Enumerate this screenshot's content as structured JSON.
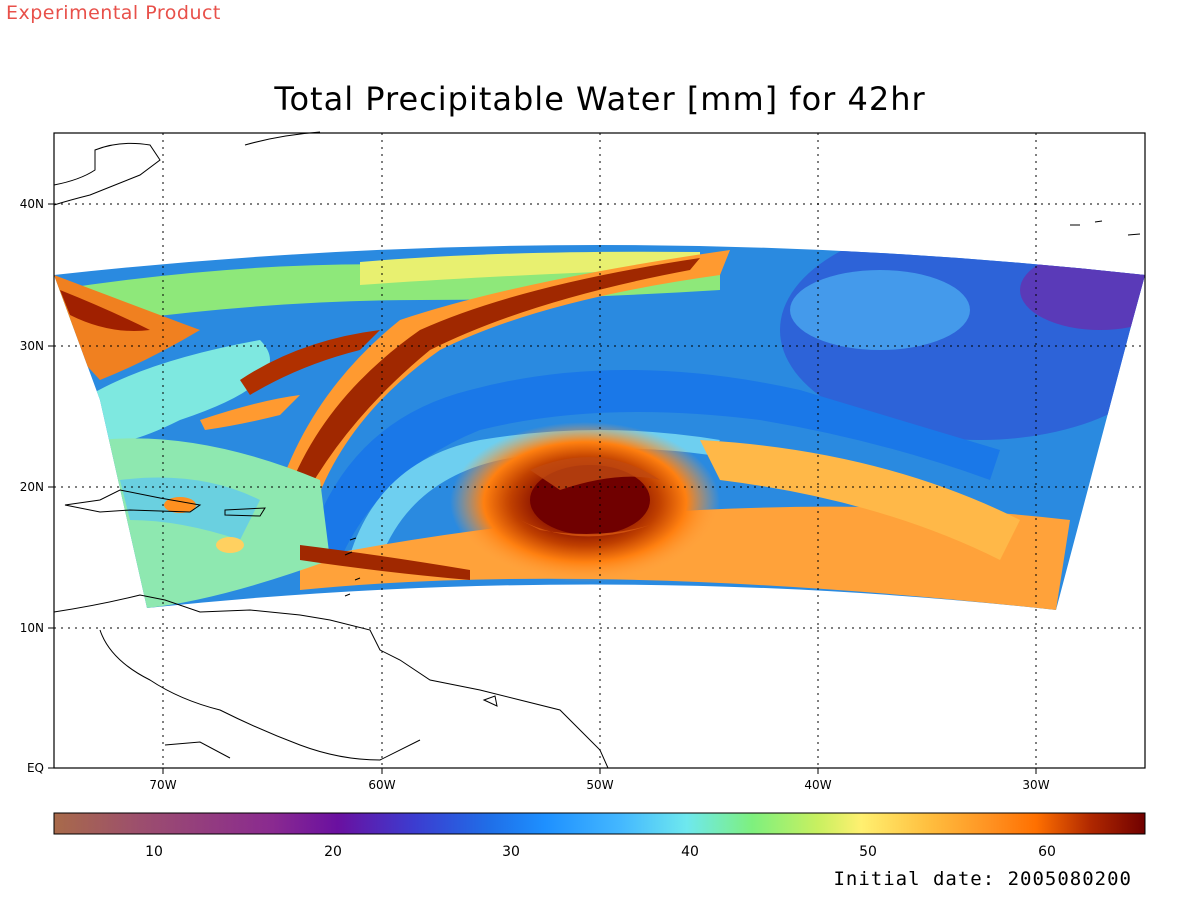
{
  "header": {
    "product_label": "Experimental Product"
  },
  "title": "Total Precipitable Water [mm] for 42hr",
  "map": {
    "lat_labels": [
      "40N",
      "30N",
      "20N",
      "10N",
      "EQ"
    ],
    "lon_labels": [
      "70W",
      "60W",
      "50W",
      "40W",
      "30W"
    ],
    "field_variable": "Total Precipitable Water",
    "units": "mm",
    "forecast_hour": "42hr",
    "features": [
      "storm-vortex",
      "coastlines",
      "dotted-graticule"
    ]
  },
  "colorbar": {
    "range": [
      5,
      65
    ],
    "tick_labels": [
      "10",
      "20",
      "30",
      "40",
      "50",
      "60"
    ],
    "colors": [
      "#a86a4a",
      "#9c4e6e",
      "#8a2a90",
      "#6a10a0",
      "#3c3cd0",
      "#1f6fe8",
      "#1e90ff",
      "#44b8ff",
      "#6ee8ee",
      "#7ef07e",
      "#c8f060",
      "#fff070",
      "#ffc040",
      "#ff9020",
      "#ff7000",
      "#d84000",
      "#a01800",
      "#700000"
    ]
  },
  "footer": {
    "initial_date": "Initial date: 2005080200"
  }
}
